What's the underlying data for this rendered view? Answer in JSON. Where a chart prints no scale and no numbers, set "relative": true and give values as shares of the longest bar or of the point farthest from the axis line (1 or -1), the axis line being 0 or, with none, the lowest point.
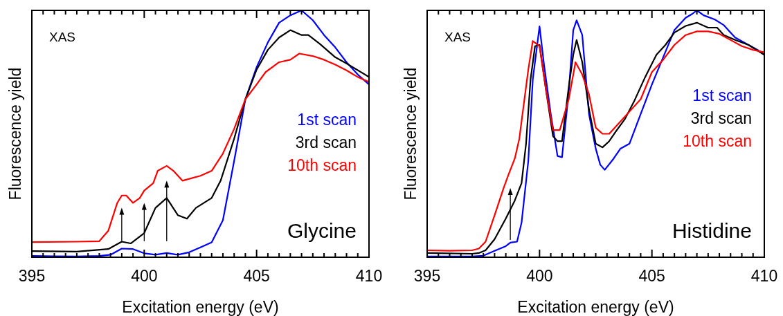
{
  "chart_data": [
    {
      "type": "line",
      "relative": true,
      "xlabel": "Excitation energy (eV)",
      "ylabel": "Fluorescence yield",
      "annotations": [
        "XAS",
        "Glycine"
      ],
      "legend": "right",
      "xlim": [
        395,
        410
      ],
      "xticks": [
        395,
        {
          "value": 395.5,
          "label": null
        },
        {
          "value": 396,
          "label": null
        },
        {
          "value": 396.5,
          "label": null
        },
        {
          "value": 397,
          "label": null
        },
        {
          "value": 397.5,
          "label": null
        },
        {
          "value": 398,
          "label": null
        },
        {
          "value": 398.5,
          "label": null
        },
        {
          "value": 399,
          "label": null
        },
        {
          "value": 399.5,
          "label": null
        },
        400,
        {
          "value": 400.5,
          "label": null
        },
        {
          "value": 401,
          "label": null
        },
        {
          "value": 401.5,
          "label": null
        },
        {
          "value": 402,
          "label": null
        },
        {
          "value": 402.5,
          "label": null
        },
        {
          "value": 403,
          "label": null
        },
        {
          "value": 403.5,
          "label": null
        },
        {
          "value": 404,
          "label": null
        },
        {
          "value": 404.5,
          "label": null
        },
        405,
        {
          "value": 405.5,
          "label": null
        },
        {
          "value": 406,
          "label": null
        },
        {
          "value": 406.5,
          "label": null
        },
        {
          "value": 407,
          "label": null
        },
        {
          "value": 407.5,
          "label": null
        },
        {
          "value": 408,
          "label": null
        },
        {
          "value": 408.5,
          "label": null
        },
        {
          "value": 409,
          "label": null
        },
        {
          "value": 409.5,
          "label": null
        },
        410
      ],
      "series": [
        {
          "name": "1st scan",
          "color": "#0000ff",
          "x": [
            395,
            396,
            397,
            398,
            398.5,
            399,
            399.5,
            400,
            400.5,
            401,
            401.5,
            402,
            402.5,
            403,
            403.5,
            404,
            404.5,
            405,
            405.5,
            406,
            406.5,
            407,
            407.5,
            408,
            408.5,
            409,
            409.5,
            410
          ],
          "values": [
            0.005,
            0.004,
            0.003,
            0.005,
            0.01,
            0.035,
            0.033,
            0.016,
            0.01,
            0.017,
            0.01,
            0.02,
            0.04,
            0.06,
            0.15,
            0.39,
            0.64,
            0.77,
            0.87,
            0.95,
            0.98,
            1.0,
            0.96,
            0.9,
            0.85,
            0.79,
            0.74,
            0.7
          ]
        },
        {
          "name": "3rd scan",
          "color": "#000000",
          "x": [
            395,
            397,
            398.4,
            399,
            399.4,
            400,
            400.5,
            401,
            401.5,
            401.9,
            402.3,
            403,
            403.4,
            404,
            404.5,
            405,
            405.5,
            406,
            406.5,
            407,
            407.3,
            407.8,
            408.5,
            409,
            410
          ],
          "values": [
            0.025,
            0.023,
            0.033,
            0.063,
            0.056,
            0.098,
            0.2,
            0.24,
            0.17,
            0.156,
            0.2,
            0.24,
            0.31,
            0.48,
            0.64,
            0.76,
            0.84,
            0.89,
            0.92,
            0.9,
            0.9,
            0.865,
            0.81,
            0.785,
            0.73
          ]
        },
        {
          "name": "10th scan",
          "color": "#ff0000",
          "x": [
            395,
            397,
            398,
            398.4,
            398.8,
            399,
            399.2,
            399.5,
            399.8,
            400,
            400.4,
            400.6,
            401,
            401.3,
            401.7,
            402.5,
            403,
            403.5,
            404,
            404.5,
            405,
            405.4,
            406,
            406.5,
            406.9,
            407.5,
            408,
            408.5,
            409,
            409.5,
            410
          ],
          "values": [
            0.061,
            0.063,
            0.065,
            0.107,
            0.22,
            0.25,
            0.25,
            0.22,
            0.24,
            0.27,
            0.3,
            0.35,
            0.37,
            0.35,
            0.31,
            0.33,
            0.35,
            0.42,
            0.52,
            0.64,
            0.7,
            0.75,
            0.79,
            0.8,
            0.825,
            0.815,
            0.8,
            0.78,
            0.757,
            0.73,
            0.71
          ]
        }
      ]
    },
    {
      "type": "line",
      "relative": true,
      "xlabel": "Excitation energy (eV)",
      "ylabel": "Fluorescence yield",
      "annotations": [
        "XAS",
        "Histidine"
      ],
      "legend": "right",
      "xlim": [
        395,
        410
      ],
      "xticks": [
        395,
        {
          "value": 395.5,
          "label": null
        },
        {
          "value": 396,
          "label": null
        },
        {
          "value": 396.5,
          "label": null
        },
        {
          "value": 397,
          "label": null
        },
        {
          "value": 397.5,
          "label": null
        },
        {
          "value": 398,
          "label": null
        },
        {
          "value": 398.5,
          "label": null
        },
        {
          "value": 399,
          "label": null
        },
        {
          "value": 399.5,
          "label": null
        },
        400,
        {
          "value": 400.5,
          "label": null
        },
        {
          "value": 401,
          "label": null
        },
        {
          "value": 401.5,
          "label": null
        },
        {
          "value": 402,
          "label": null
        },
        {
          "value": 402.5,
          "label": null
        },
        {
          "value": 403,
          "label": null
        },
        {
          "value": 403.5,
          "label": null
        },
        {
          "value": 404,
          "label": null
        },
        {
          "value": 404.5,
          "label": null
        },
        405,
        {
          "value": 405.5,
          "label": null
        },
        {
          "value": 406,
          "label": null
        },
        {
          "value": 406.5,
          "label": null
        },
        {
          "value": 407,
          "label": null
        },
        {
          "value": 407.5,
          "label": null
        },
        {
          "value": 408,
          "label": null
        },
        {
          "value": 408.5,
          "label": null
        },
        {
          "value": 409,
          "label": null
        },
        {
          "value": 409.5,
          "label": null
        },
        410
      ],
      "series": [
        {
          "name": "1st scan",
          "color": "#0000ff",
          "x": [
            395,
            397,
            397.5,
            398,
            398.5,
            398.7,
            399,
            399.2,
            399.5,
            399.7,
            400,
            400.2,
            400.5,
            400.8,
            401,
            401.3,
            401.5,
            401.65,
            401.9,
            402.2,
            402.5,
            402.7,
            402.9,
            403.3,
            403.6,
            404,
            404.5,
            405,
            405.5,
            406,
            406.5,
            406.8,
            407,
            407.3,
            407.8,
            408.2,
            408.7,
            409.2,
            409.7,
            410
          ],
          "values": [
            0.003,
            0.003,
            0.006,
            0.026,
            0.045,
            0.059,
            0.063,
            0.14,
            0.39,
            0.72,
            0.935,
            0.78,
            0.58,
            0.41,
            0.405,
            0.67,
            0.92,
            0.96,
            0.9,
            0.58,
            0.44,
            0.375,
            0.354,
            0.4,
            0.44,
            0.46,
            0.58,
            0.7,
            0.81,
            0.92,
            0.97,
            0.986,
            1.0,
            0.98,
            0.963,
            0.94,
            0.89,
            0.865,
            0.84,
            0.82
          ]
        },
        {
          "name": "3rd scan",
          "color": "#000000",
          "x": [
            395,
            397,
            397.3,
            397.6,
            398,
            398.5,
            398.9,
            399.2,
            399.4,
            399.6,
            399.8,
            400,
            400.3,
            400.6,
            400.8,
            401,
            401.3,
            401.5,
            401.65,
            401.9,
            402.2,
            402.5,
            402.8,
            403.1,
            403.4,
            403.8,
            404.2,
            404.7,
            405.2,
            405.6,
            406,
            406.5,
            407,
            407.5,
            407.9,
            408.2,
            408.7,
            409.3,
            410
          ],
          "values": [
            0.017,
            0.014,
            0.017,
            0.028,
            0.073,
            0.157,
            0.23,
            0.3,
            0.46,
            0.72,
            0.855,
            0.86,
            0.67,
            0.49,
            0.47,
            0.47,
            0.69,
            0.82,
            0.88,
            0.79,
            0.6,
            0.46,
            0.445,
            0.47,
            0.51,
            0.56,
            0.63,
            0.73,
            0.82,
            0.86,
            0.91,
            0.937,
            0.95,
            0.93,
            0.93,
            0.9,
            0.88,
            0.86,
            0.82
          ]
        },
        {
          "name": "10th scan",
          "color": "#ff0000",
          "x": [
            395,
            396,
            397,
            397.3,
            397.6,
            398,
            398.4,
            398.6,
            398.9,
            399.1,
            399.5,
            399.7,
            400,
            400.3,
            400.6,
            400.9,
            401.3,
            401.6,
            401.9,
            402.2,
            402.5,
            402.8,
            403.1,
            403.5,
            404,
            404.5,
            405,
            405.5,
            406,
            406.5,
            407,
            407.5,
            408,
            408.5,
            409,
            409.5,
            410
          ],
          "values": [
            0.028,
            0.026,
            0.028,
            0.035,
            0.063,
            0.17,
            0.28,
            0.33,
            0.4,
            0.48,
            0.76,
            0.876,
            0.855,
            0.67,
            0.515,
            0.515,
            0.64,
            0.79,
            0.74,
            0.66,
            0.525,
            0.5,
            0.5,
            0.54,
            0.59,
            0.64,
            0.75,
            0.8,
            0.86,
            0.9,
            0.915,
            0.915,
            0.905,
            0.88,
            0.855,
            0.84,
            0.83
          ]
        }
      ]
    }
  ]
}
